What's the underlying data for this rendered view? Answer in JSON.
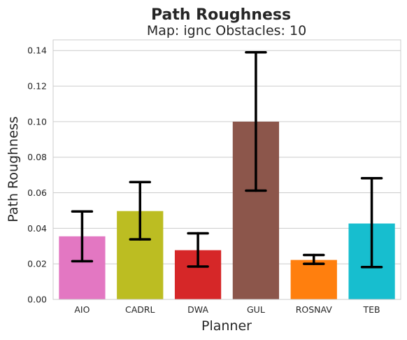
{
  "chart_data": {
    "type": "bar",
    "title": "Path Roughness",
    "subtitle": "Map: ignc Obstacles: 10",
    "xlabel": "Planner",
    "ylabel": "Path Roughness",
    "ylim": [
      0,
      0.146
    ],
    "yticks": [
      "0.00",
      "0.02",
      "0.04",
      "0.06",
      "0.08",
      "0.10",
      "0.12",
      "0.14"
    ],
    "ytick_values": [
      0,
      0.02,
      0.04,
      0.06,
      0.08,
      0.1,
      0.12,
      0.14
    ],
    "grid": true,
    "categories": [
      "AIO",
      "CADRL",
      "DWA",
      "GUL",
      "ROSNAV",
      "TEB"
    ],
    "values": [
      0.0355,
      0.0497,
      0.0277,
      0.1,
      0.0222,
      0.0427
    ],
    "error_low": [
      0.0215,
      0.0338,
      0.0185,
      0.0612,
      0.02,
      0.0182
    ],
    "error_high": [
      0.0495,
      0.066,
      0.0372,
      0.139,
      0.025,
      0.0682
    ],
    "colors": [
      "#e377c2",
      "#bcbd22",
      "#d62728",
      "#8c564b",
      "#ff7f0e",
      "#17becf"
    ]
  }
}
